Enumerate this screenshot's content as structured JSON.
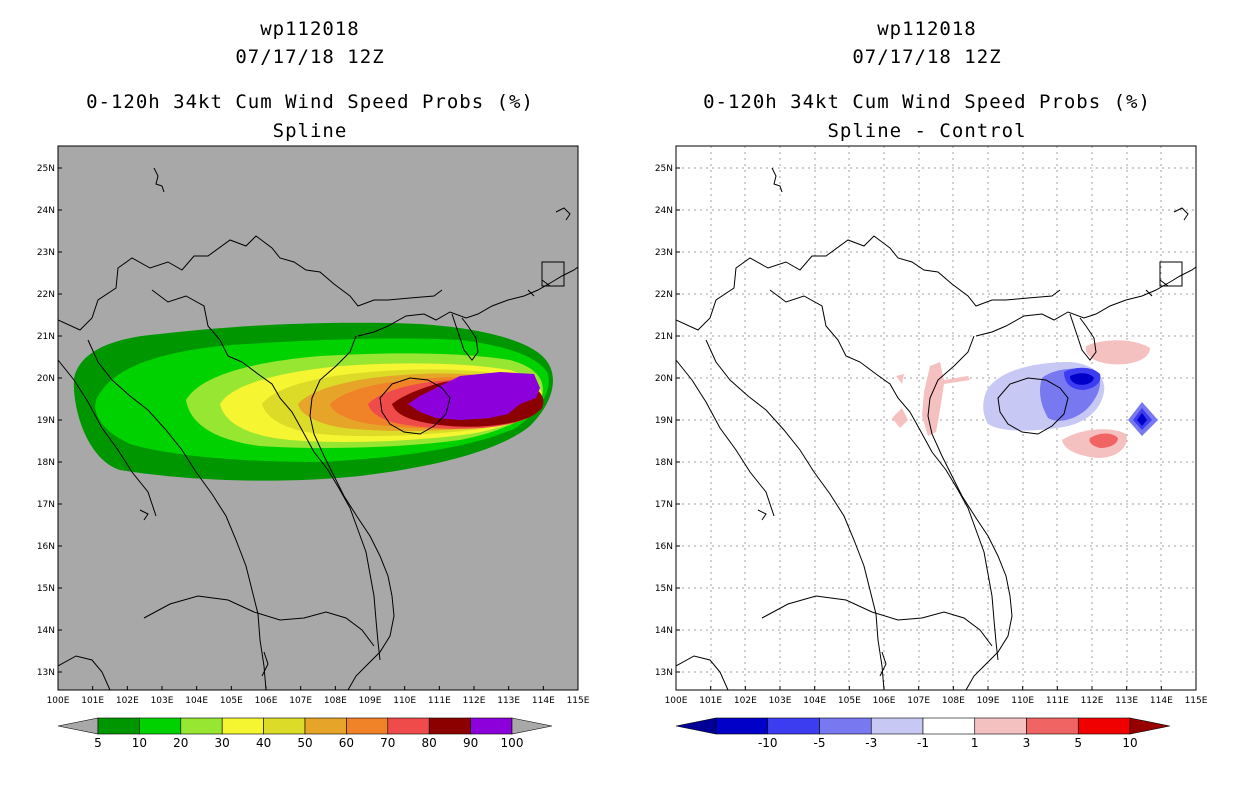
{
  "left_panel": {
    "title_lines": [
      "wp112018",
      "07/17/18 12Z",
      "0-120h 34kt Cum Wind Speed Probs (%)",
      "Spline"
    ],
    "map": {
      "background": "#a8a8a8",
      "lat_labels": [
        "25N",
        "24N",
        "23N",
        "22N",
        "21N",
        "20N",
        "19N",
        "18N",
        "17N",
        "16N",
        "15N",
        "14N",
        "13N"
      ],
      "lon_labels": [
        "100E",
        "101E",
        "102E",
        "103E",
        "104E",
        "105E",
        "106E",
        "107E",
        "108E",
        "109E",
        "110E",
        "111E",
        "112E",
        "113E",
        "114E",
        "115E"
      ]
    },
    "colorbar": {
      "labels": [
        "5",
        "10",
        "20",
        "30",
        "40",
        "50",
        "60",
        "70",
        "80",
        "90",
        "100"
      ],
      "colors": [
        "#009600",
        "#00d200",
        "#96e632",
        "#f5f532",
        "#dcdc28",
        "#e6a528",
        "#f08228",
        "#f04b4b",
        "#8c0000",
        "#8c00dc"
      ],
      "arrow_color": "#a8a8a8"
    }
  },
  "right_panel": {
    "title_lines": [
      "wp112018",
      "07/17/18 12Z",
      "0-120h 34kt Cum Wind Speed Probs (%)",
      "Spline - Control"
    ],
    "map": {
      "background": "#ffffff",
      "lat_labels": [
        "25N",
        "24N",
        "23N",
        "22N",
        "21N",
        "20N",
        "19N",
        "18N",
        "17N",
        "16N",
        "15N",
        "14N",
        "13N"
      ],
      "lon_labels": [
        "100E",
        "101E",
        "102E",
        "103E",
        "104E",
        "105E",
        "106E",
        "107E",
        "108E",
        "109E",
        "110E",
        "111E",
        "112E",
        "113E",
        "114E",
        "115E"
      ]
    },
    "colorbar": {
      "labels": [
        "-10",
        "-5",
        "-3",
        "-1",
        "1",
        "3",
        "5",
        "10"
      ],
      "colors": [
        "#0000c8",
        "#3c3cf0",
        "#7878f0",
        "#c8c8f5",
        "#ffffff",
        "#f5c0c0",
        "#f06464",
        "#f00000"
      ],
      "arrow_left_color": "#000096",
      "arrow_right_color": "#960000"
    }
  }
}
